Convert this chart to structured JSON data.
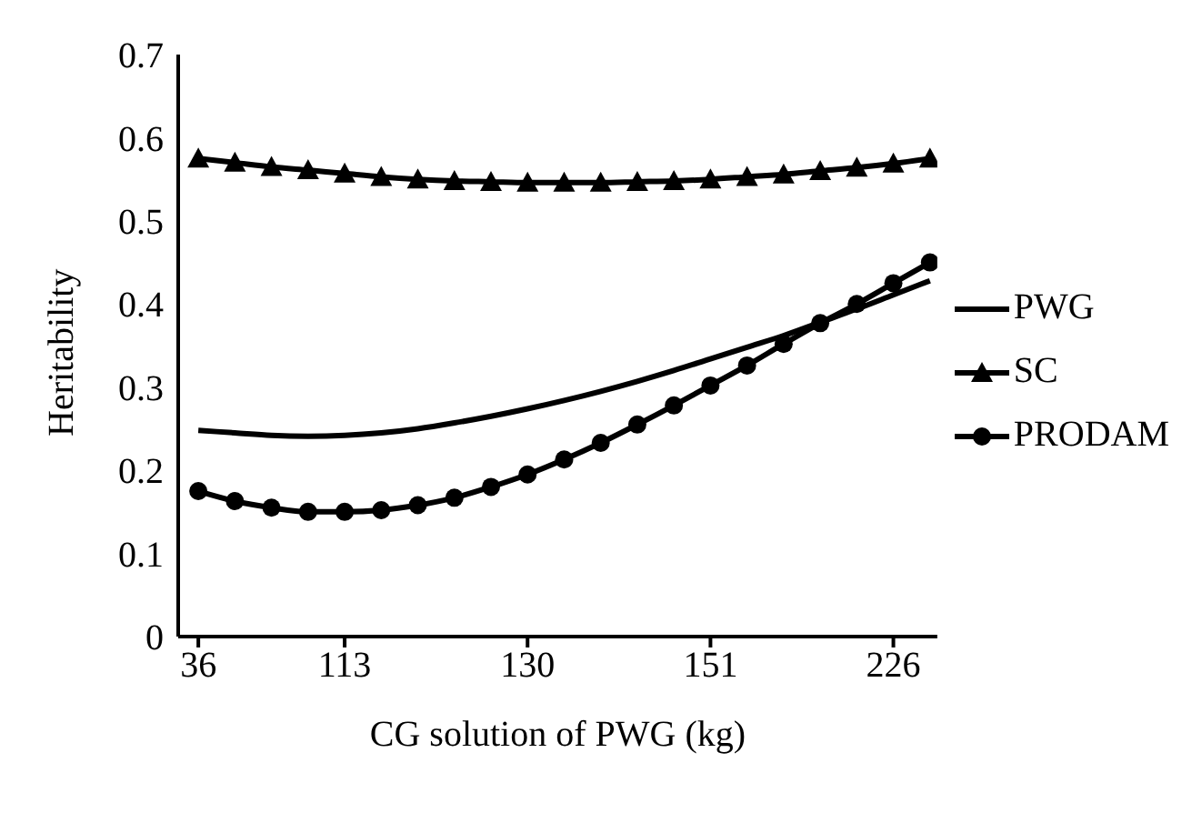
{
  "chart_data": {
    "type": "line",
    "xlabel": "CG solution of PWG (kg)",
    "ylabel": "Heritability",
    "categories": [
      "36",
      null,
      null,
      null,
      "113",
      null,
      null,
      null,
      null,
      "130",
      null,
      null,
      null,
      null,
      "151",
      null,
      null,
      null,
      null,
      "226",
      null
    ],
    "ylim": [
      0,
      0.7
    ],
    "yticks": [
      0,
      0.1,
      0.2,
      0.3,
      0.4,
      0.5,
      0.6,
      0.7
    ],
    "grid": false,
    "legend": "right",
    "series": [
      {
        "name": "PWG",
        "color": "#000000",
        "marker": "none",
        "values": [
          0.248,
          0.245,
          0.242,
          0.241,
          0.242,
          0.245,
          0.25,
          0.257,
          0.265,
          0.274,
          0.284,
          0.295,
          0.307,
          0.32,
          0.334,
          0.348,
          0.362,
          0.378,
          0.394,
          0.411,
          0.428
        ]
      },
      {
        "name": "SC",
        "color": "#000000",
        "marker": "triangle",
        "values": [
          0.575,
          0.57,
          0.565,
          0.561,
          0.557,
          0.553,
          0.55,
          0.548,
          0.547,
          0.546,
          0.546,
          0.546,
          0.547,
          0.548,
          0.55,
          0.553,
          0.556,
          0.56,
          0.564,
          0.569,
          0.575
        ]
      },
      {
        "name": "PRODAM",
        "color": "#000000",
        "marker": "circle",
        "values": [
          0.175,
          0.163,
          0.155,
          0.15,
          0.15,
          0.152,
          0.158,
          0.167,
          0.18,
          0.195,
          0.213,
          0.233,
          0.255,
          0.278,
          0.302,
          0.326,
          0.352,
          0.377,
          0.4,
          0.425,
          0.45
        ]
      }
    ]
  }
}
